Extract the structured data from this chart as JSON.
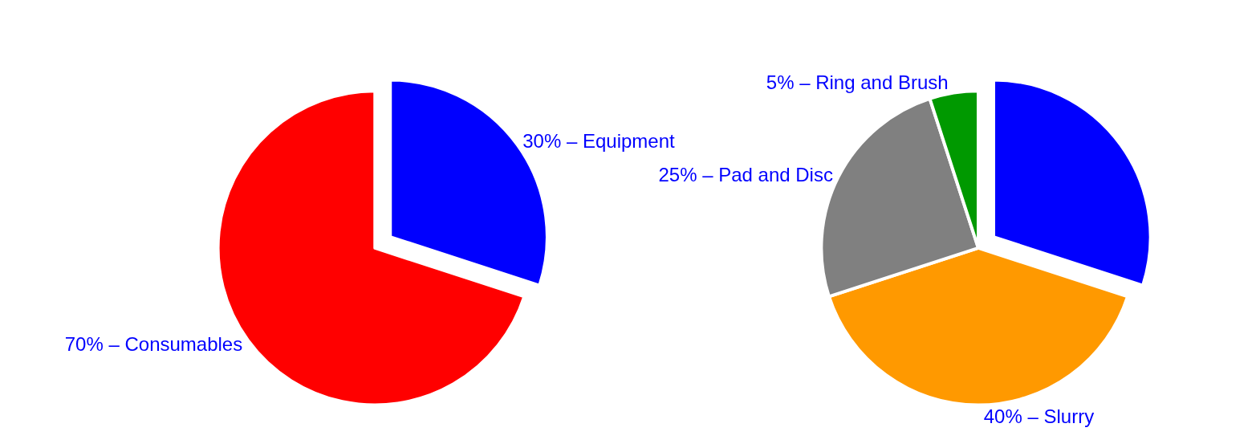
{
  "chart_data": [
    {
      "type": "pie",
      "categories": [
        "30% – Equipment",
        "70% – Consumables"
      ],
      "values": [
        30,
        70
      ],
      "colors": [
        "#0000ff",
        "#ff0000"
      ]
    },
    {
      "type": "pie",
      "categories": [
        null,
        "40% – Slurry",
        "25% – Pad and Disc",
        "5% – Ring and Brush"
      ],
      "values": [
        30,
        40,
        25,
        5
      ],
      "colors": [
        "#0000ff",
        "#ff9900",
        "#808080",
        "#009900"
      ]
    }
  ]
}
